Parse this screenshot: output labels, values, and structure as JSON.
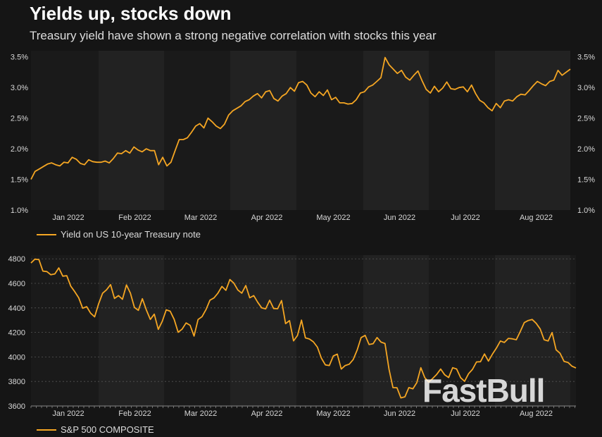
{
  "title": "Yields up, stocks down",
  "subtitle": "Treasury yield have shown a strong negative correlation with stocks this year",
  "watermark": "FastBull",
  "colors": {
    "line": "#f5a623",
    "background": "#151515",
    "band_light": "#222222",
    "band_dark": "#1a1a1a"
  },
  "chart_data": [
    {
      "type": "line",
      "title": "Yield on US 10-year Treasury note",
      "legend": "Yield on US 10-year Treasury note",
      "ylim": [
        1.0,
        3.6
      ],
      "yticks": [
        "1.0%",
        "1.5%",
        "2.0%",
        "2.5%",
        "3.0%",
        "3.5%"
      ],
      "ytick_values": [
        1.0,
        1.5,
        2.0,
        2.5,
        3.0,
        3.5
      ],
      "xticks": [
        "Jan 2022",
        "Feb 2022",
        "Mar 2022",
        "Apr 2022",
        "May 2022",
        "Jun 2022",
        "Jul 2022",
        "Aug 2022"
      ],
      "series": [
        {
          "name": "Yield on US 10-year Treasury note",
          "values": [
            1.5,
            1.63,
            1.67,
            1.71,
            1.75,
            1.77,
            1.74,
            1.72,
            1.78,
            1.77,
            1.86,
            1.83,
            1.76,
            1.74,
            1.82,
            1.79,
            1.78,
            1.78,
            1.8,
            1.77,
            1.84,
            1.93,
            1.92,
            1.97,
            1.93,
            2.03,
            1.98,
            1.95,
            2.0,
            1.97,
            1.97,
            1.74,
            1.86,
            1.72,
            1.78,
            1.97,
            2.15,
            2.15,
            2.18,
            2.27,
            2.37,
            2.41,
            2.34,
            2.5,
            2.44,
            2.37,
            2.33,
            2.4,
            2.55,
            2.62,
            2.66,
            2.7,
            2.77,
            2.8,
            2.86,
            2.9,
            2.83,
            2.93,
            2.95,
            2.82,
            2.78,
            2.86,
            2.9,
            3.0,
            2.94,
            3.08,
            3.1,
            3.04,
            2.91,
            2.85,
            2.93,
            2.87,
            2.96,
            2.8,
            2.84,
            2.75,
            2.75,
            2.73,
            2.74,
            2.8,
            2.91,
            2.93,
            3.01,
            3.04,
            3.1,
            3.16,
            3.49,
            3.37,
            3.3,
            3.23,
            3.28,
            3.17,
            3.12,
            3.2,
            3.27,
            3.11,
            2.97,
            2.91,
            3.02,
            2.93,
            2.99,
            3.09,
            2.98,
            2.97,
            3.0,
            3.01,
            2.93,
            3.04,
            2.9,
            2.79,
            2.75,
            2.67,
            2.62,
            2.74,
            2.67,
            2.78,
            2.8,
            2.78,
            2.85,
            2.89,
            2.88,
            2.95,
            3.03,
            3.1,
            3.06,
            3.03,
            3.1,
            3.12,
            3.28,
            3.2,
            3.25,
            3.3
          ]
        }
      ]
    },
    {
      "type": "line",
      "title": "S&P 500 COMPOSITE",
      "legend": "S&P 500 COMPOSITE",
      "ylim": [
        3600,
        4830
      ],
      "yticks": [
        "3600",
        "3800",
        "4000",
        "4200",
        "4400",
        "4600",
        "4800"
      ],
      "ytick_values": [
        3600,
        3800,
        4000,
        4200,
        4400,
        4600,
        4800
      ],
      "xticks": [
        "Jan 2022",
        "Feb 2022",
        "Mar 2022",
        "Apr 2022",
        "May 2022",
        "Jun 2022",
        "Jul 2022",
        "Aug 2022"
      ],
      "series": [
        {
          "name": "S&P 500 COMPOSITE",
          "values": [
            4766,
            4797,
            4793,
            4700,
            4696,
            4670,
            4677,
            4726,
            4659,
            4663,
            4577,
            4533,
            4482,
            4397,
            4410,
            4357,
            4327,
            4432,
            4519,
            4547,
            4590,
            4477,
            4500,
            4470,
            4587,
            4520,
            4404,
            4380,
            4475,
            4384,
            4306,
            4349,
            4225,
            4290,
            4384,
            4373,
            4306,
            4201,
            4227,
            4277,
            4258,
            4170,
            4305,
            4328,
            4386,
            4463,
            4481,
            4520,
            4575,
            4543,
            4631,
            4602,
            4546,
            4520,
            4582,
            4482,
            4500,
            4446,
            4400,
            4392,
            4462,
            4395,
            4393,
            4460,
            4272,
            4296,
            4131,
            4175,
            4300,
            4155,
            4146,
            4123,
            4080,
            3991,
            3935,
            3930,
            4008,
            4023,
            3901,
            3930,
            3941,
            3978,
            4057,
            4158,
            4176,
            4101,
            4108,
            4158,
            4121,
            4109,
            3900,
            3750,
            3749,
            3666,
            3675,
            3750,
            3740,
            3790,
            3912,
            3831,
            3795,
            3825,
            3858,
            3901,
            3854,
            3832,
            3912,
            3902,
            3831,
            3801,
            3863,
            3899,
            3959,
            3961,
            4024,
            3966,
            4023,
            4072,
            4130,
            4118,
            4151,
            4148,
            4140,
            4207,
            4280,
            4297,
            4305,
            4274,
            4228,
            4140,
            4130,
            4199,
            4058,
            4030,
            3964,
            3955,
            3924,
            3910
          ]
        }
      ]
    }
  ],
  "top_chart_legend": "Yield on US 10-year Treasury note",
  "bottom_chart_legend": "S&P 500 COMPOSITE"
}
